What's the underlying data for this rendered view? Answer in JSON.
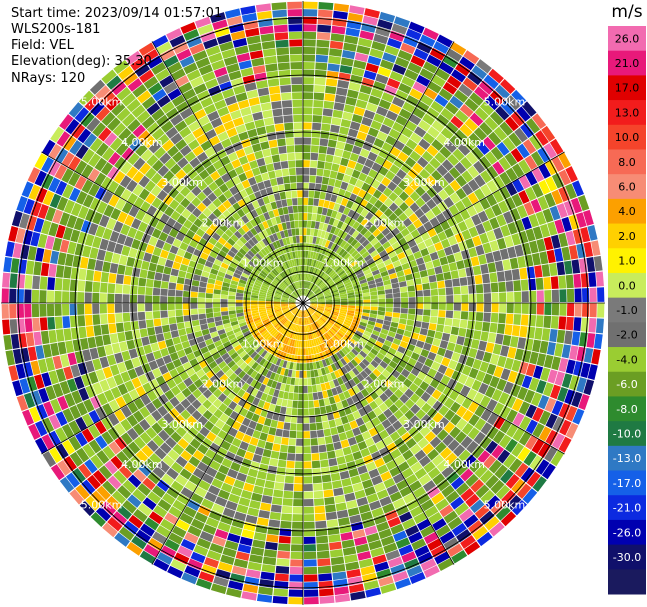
{
  "header": {
    "start_time": "Start time: 2023/09/14 01:57:01",
    "instrument": "WLS200s-181",
    "field": "Field: VEL",
    "elevation": "Elevation(deg): 35.30",
    "nrays": "NRays: 120"
  },
  "colorbar": {
    "unit": "m/s",
    "ticks": [
      "26.0",
      "21.0",
      "17.0",
      "13.0",
      "10.0",
      "8.0",
      "6.0",
      "4.0",
      "2.0",
      "1.0",
      "0.0",
      "-1.0",
      "-2.0",
      "-4.0",
      "-6.0",
      "-8.0",
      "-10.0",
      "-13.0",
      "-17.0",
      "-21.0",
      "-26.0",
      "-30.0"
    ],
    "colors": [
      "#f26bb0",
      "#e8197a",
      "#e00000",
      "#f21c1c",
      "#f5442b",
      "#f76a55",
      "#f78c75",
      "#fca000",
      "#ffd000",
      "#fff200",
      "#c8ec5c",
      "#7a7a7a",
      "#707070",
      "#9acd32",
      "#6b9e23",
      "#2e8b2e",
      "#1f7a43",
      "#2f79c4",
      "#1560e8",
      "#0c2ae0",
      "#0000b0",
      "#10106b",
      "#1a1a5e"
    ]
  },
  "chart_data": {
    "type": "heatmap",
    "projection": "polar PPI",
    "range_ring_labels": [
      "1.00km",
      "2.00km",
      "3.00km",
      "4.00km",
      "5.00km"
    ],
    "range_rings_km": [
      1,
      2,
      3,
      4,
      5
    ],
    "max_range_km": 5.3,
    "nrays": 120,
    "value_range": [
      -30,
      30
    ],
    "unit": "m/s",
    "field": "VEL"
  }
}
